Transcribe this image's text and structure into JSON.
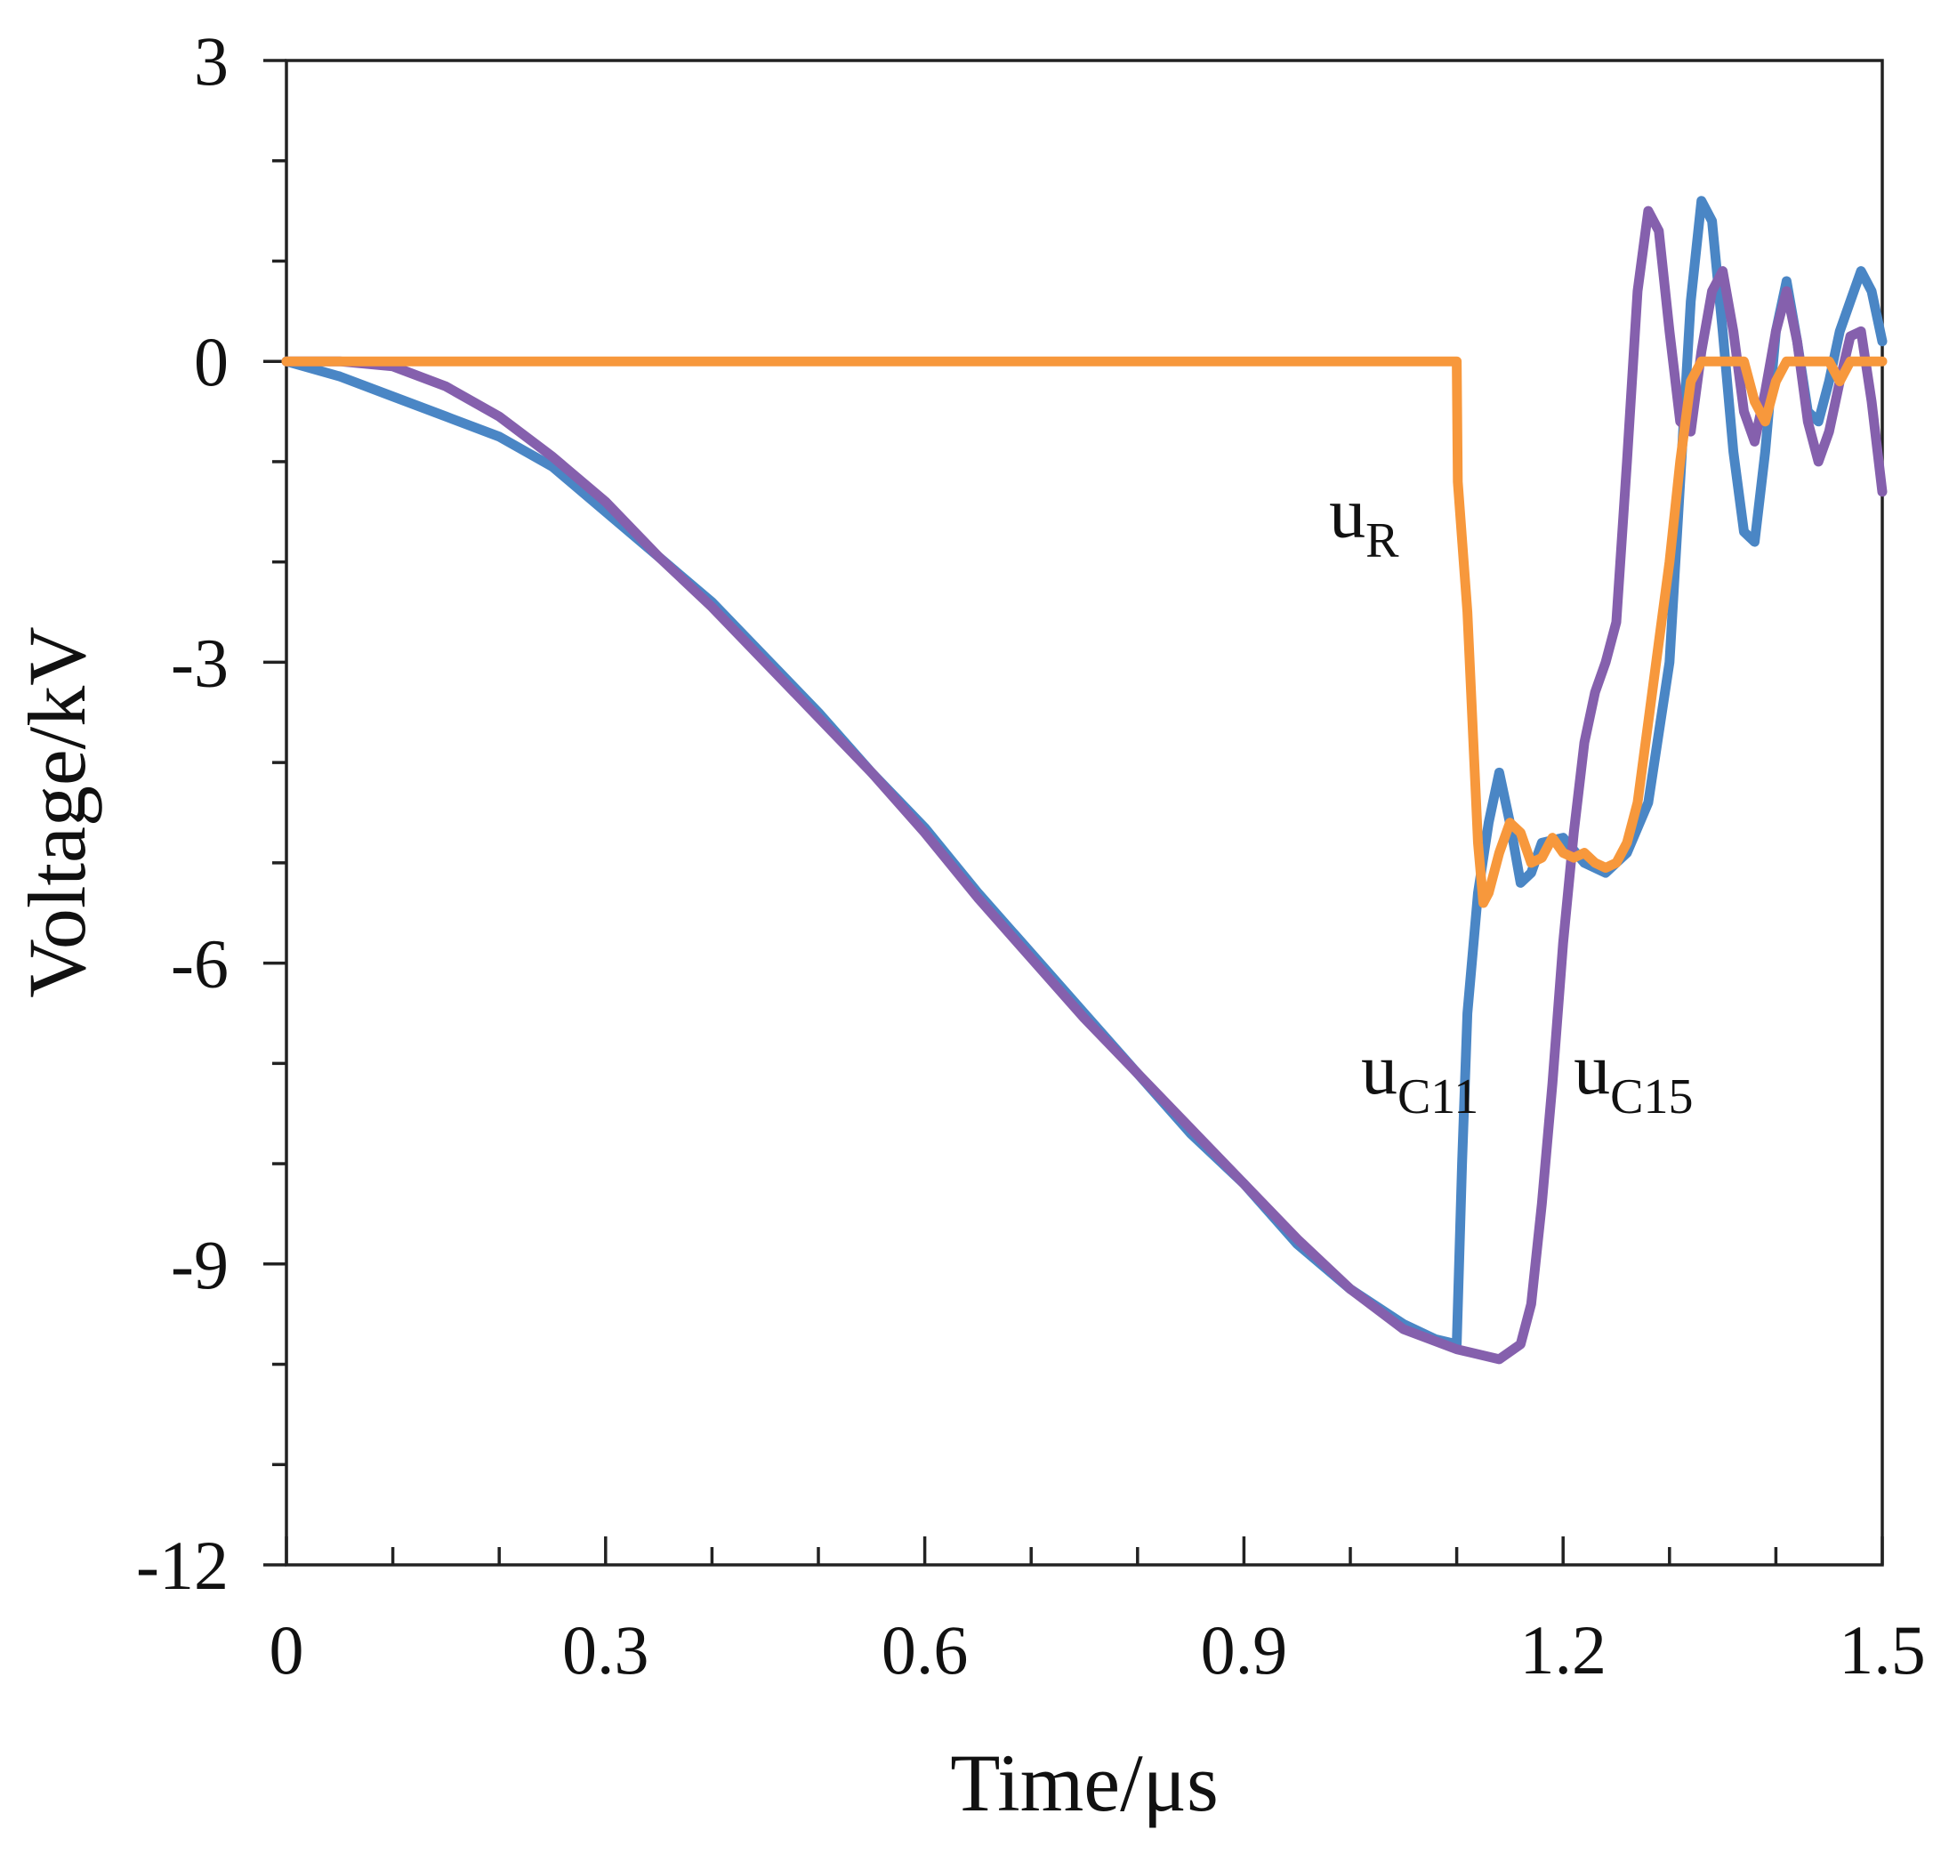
{
  "chart_data": {
    "type": "line",
    "title": "",
    "xlabel": "Time/μs",
    "ylabel": "Voltage/kV",
    "xlim": [
      0,
      1.5
    ],
    "ylim": [
      -12,
      3
    ],
    "x_ticks": [
      0,
      0.3,
      0.6,
      0.9,
      1.2,
      1.5
    ],
    "x_tick_labels": [
      "0",
      "0.3",
      "0.6",
      "0.9",
      "1.2",
      "1.5"
    ],
    "x_minor_step": 0.1,
    "y_ticks": [
      3,
      0,
      -3,
      -6,
      -9,
      -12
    ],
    "y_tick_labels": [
      "3",
      "0",
      "-3",
      "-6",
      "-9",
      "-12"
    ],
    "y_minor_step": 1,
    "grid": false,
    "series": [
      {
        "name": "uC11",
        "label_main": "u",
        "label_sub": "C11",
        "color": "#4a86c5",
        "label_at": [
          1.01,
          -7.3
        ],
        "points": [
          [
            0,
            0
          ],
          [
            0.05,
            -0.15
          ],
          [
            0.1,
            -0.35
          ],
          [
            0.15,
            -0.55
          ],
          [
            0.2,
            -0.75
          ],
          [
            0.25,
            -1.05
          ],
          [
            0.3,
            -1.5
          ],
          [
            0.35,
            -1.95
          ],
          [
            0.4,
            -2.4
          ],
          [
            0.45,
            -2.95
          ],
          [
            0.5,
            -3.5
          ],
          [
            0.55,
            -4.1
          ],
          [
            0.6,
            -4.65
          ],
          [
            0.65,
            -5.3
          ],
          [
            0.7,
            -5.9
          ],
          [
            0.75,
            -6.5
          ],
          [
            0.8,
            -7.1
          ],
          [
            0.85,
            -7.7
          ],
          [
            0.9,
            -8.2
          ],
          [
            0.95,
            -8.8
          ],
          [
            1.0,
            -9.25
          ],
          [
            1.05,
            -9.6
          ],
          [
            1.08,
            -9.75
          ],
          [
            1.1,
            -9.8
          ],
          [
            1.105,
            -8.0
          ],
          [
            1.11,
            -6.5
          ],
          [
            1.12,
            -5.3
          ],
          [
            1.13,
            -4.6
          ],
          [
            1.14,
            -4.1
          ],
          [
            1.15,
            -4.6
          ],
          [
            1.16,
            -5.2
          ],
          [
            1.17,
            -5.1
          ],
          [
            1.18,
            -4.8
          ],
          [
            1.2,
            -4.75
          ],
          [
            1.22,
            -5.0
          ],
          [
            1.24,
            -5.1
          ],
          [
            1.26,
            -4.9
          ],
          [
            1.28,
            -4.4
          ],
          [
            1.3,
            -3.0
          ],
          [
            1.31,
            -1.2
          ],
          [
            1.32,
            0.6
          ],
          [
            1.33,
            1.6
          ],
          [
            1.34,
            1.4
          ],
          [
            1.35,
            0.3
          ],
          [
            1.36,
            -0.9
          ],
          [
            1.37,
            -1.7
          ],
          [
            1.38,
            -1.8
          ],
          [
            1.39,
            -0.9
          ],
          [
            1.4,
            0.3
          ],
          [
            1.41,
            0.8
          ],
          [
            1.42,
            0.2
          ],
          [
            1.43,
            -0.5
          ],
          [
            1.44,
            -0.6
          ],
          [
            1.45,
            -0.2
          ],
          [
            1.46,
            0.3
          ],
          [
            1.47,
            0.6
          ],
          [
            1.48,
            0.9
          ],
          [
            1.49,
            0.7
          ],
          [
            1.5,
            0.2
          ]
        ]
      },
      {
        "name": "uC15",
        "label_main": "u",
        "label_sub": "C15",
        "color": "#8560ad",
        "label_at": [
          1.21,
          -7.3
        ],
        "points": [
          [
            0,
            0
          ],
          [
            0.05,
            0
          ],
          [
            0.1,
            -0.05
          ],
          [
            0.15,
            -0.25
          ],
          [
            0.2,
            -0.55
          ],
          [
            0.25,
            -0.95
          ],
          [
            0.3,
            -1.4
          ],
          [
            0.35,
            -1.95
          ],
          [
            0.4,
            -2.45
          ],
          [
            0.45,
            -3.0
          ],
          [
            0.5,
            -3.55
          ],
          [
            0.55,
            -4.1
          ],
          [
            0.6,
            -4.7
          ],
          [
            0.65,
            -5.35
          ],
          [
            0.7,
            -5.95
          ],
          [
            0.75,
            -6.55
          ],
          [
            0.8,
            -7.1
          ],
          [
            0.85,
            -7.65
          ],
          [
            0.9,
            -8.2
          ],
          [
            0.95,
            -8.75
          ],
          [
            1.0,
            -9.25
          ],
          [
            1.05,
            -9.65
          ],
          [
            1.1,
            -9.85
          ],
          [
            1.14,
            -9.95
          ],
          [
            1.16,
            -9.8
          ],
          [
            1.17,
            -9.4
          ],
          [
            1.18,
            -8.4
          ],
          [
            1.19,
            -7.2
          ],
          [
            1.2,
            -5.8
          ],
          [
            1.21,
            -4.7
          ],
          [
            1.22,
            -3.8
          ],
          [
            1.23,
            -3.3
          ],
          [
            1.24,
            -3.0
          ],
          [
            1.25,
            -2.6
          ],
          [
            1.26,
            -1.0
          ],
          [
            1.27,
            0.7
          ],
          [
            1.28,
            1.5
          ],
          [
            1.29,
            1.3
          ],
          [
            1.3,
            0.3
          ],
          [
            1.31,
            -0.6
          ],
          [
            1.32,
            -0.7
          ],
          [
            1.33,
            0.1
          ],
          [
            1.34,
            0.7
          ],
          [
            1.35,
            0.9
          ],
          [
            1.36,
            0.3
          ],
          [
            1.37,
            -0.5
          ],
          [
            1.38,
            -0.8
          ],
          [
            1.39,
            -0.3
          ],
          [
            1.4,
            0.3
          ],
          [
            1.41,
            0.7
          ],
          [
            1.42,
            0.2
          ],
          [
            1.43,
            -0.6
          ],
          [
            1.44,
            -1.0
          ],
          [
            1.45,
            -0.7
          ],
          [
            1.46,
            -0.2
          ],
          [
            1.47,
            0.25
          ],
          [
            1.48,
            0.3
          ],
          [
            1.49,
            -0.4
          ],
          [
            1.5,
            -1.3
          ]
        ]
      },
      {
        "name": "uR",
        "label_main": "u",
        "label_sub": "R",
        "color": "#f7983c",
        "label_at": [
          0.98,
          -1.75
        ],
        "points": [
          [
            0,
            0
          ],
          [
            1.1,
            0
          ],
          [
            1.101,
            -1.2
          ],
          [
            1.11,
            -2.5
          ],
          [
            1.12,
            -4.8
          ],
          [
            1.125,
            -5.4
          ],
          [
            1.13,
            -5.3
          ],
          [
            1.14,
            -4.9
          ],
          [
            1.15,
            -4.6
          ],
          [
            1.16,
            -4.7
          ],
          [
            1.17,
            -5.0
          ],
          [
            1.18,
            -4.95
          ],
          [
            1.19,
            -4.75
          ],
          [
            1.2,
            -4.9
          ],
          [
            1.21,
            -4.95
          ],
          [
            1.22,
            -4.9
          ],
          [
            1.23,
            -5.0
          ],
          [
            1.24,
            -5.05
          ],
          [
            1.25,
            -5.0
          ],
          [
            1.26,
            -4.8
          ],
          [
            1.27,
            -4.4
          ],
          [
            1.28,
            -3.6
          ],
          [
            1.29,
            -2.8
          ],
          [
            1.3,
            -2.0
          ],
          [
            1.31,
            -1.0
          ],
          [
            1.32,
            -0.2
          ],
          [
            1.33,
            0
          ],
          [
            1.37,
            0
          ],
          [
            1.38,
            -0.4
          ],
          [
            1.39,
            -0.6
          ],
          [
            1.4,
            -0.2
          ],
          [
            1.41,
            0
          ],
          [
            1.45,
            0
          ],
          [
            1.46,
            -0.2
          ],
          [
            1.47,
            0
          ],
          [
            1.5,
            0
          ]
        ]
      }
    ]
  }
}
